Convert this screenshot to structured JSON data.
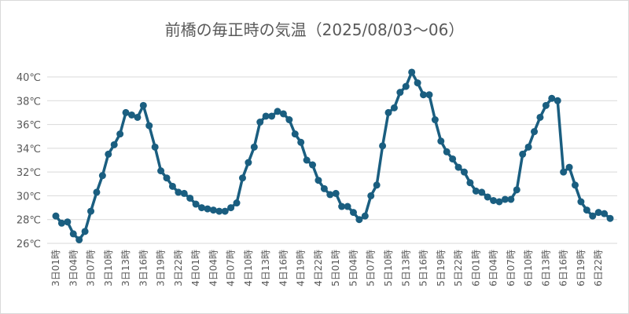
{
  "chart_data": {
    "type": "line",
    "title": "前橋の毎正時の気温（2025/08/03～06）",
    "xlabel": "",
    "ylabel": "",
    "ylim": [
      26,
      40
    ],
    "yticks": [
      "26℃",
      "28℃",
      "30℃",
      "32℃",
      "34℃",
      "36℃",
      "38℃",
      "40℃"
    ],
    "grid": true,
    "legend": "none",
    "color": "#1a5e80",
    "x_tick_labels": [
      "3日01時",
      "3日04時",
      "3日07時",
      "3日10時",
      "3日13時",
      "3日16時",
      "3日19時",
      "3日22時",
      "4日01時",
      "4日04時",
      "4日07時",
      "4日10時",
      "4日13時",
      "4日16時",
      "4日19時",
      "4日22時",
      "5日01時",
      "5日04時",
      "5日07時",
      "5日10時",
      "5日13時",
      "5日16時",
      "5日19時",
      "5日22時",
      "6日01時",
      "6日04時",
      "6日07時",
      "6日10時",
      "6日13時",
      "6日16時",
      "6日19時",
      "6日22時"
    ],
    "values": [
      28.3,
      27.7,
      27.8,
      26.8,
      26.3,
      27.0,
      28.7,
      30.3,
      31.7,
      33.5,
      34.3,
      35.2,
      37.0,
      36.8,
      36.6,
      37.6,
      35.9,
      34.1,
      32.1,
      31.5,
      30.8,
      30.3,
      30.2,
      29.8,
      29.3,
      29.0,
      28.9,
      28.8,
      28.7,
      28.7,
      29.0,
      29.4,
      31.5,
      32.8,
      34.1,
      36.2,
      36.7,
      36.7,
      37.1,
      36.9,
      36.4,
      35.2,
      34.5,
      33.0,
      32.6,
      31.3,
      30.6,
      30.1,
      30.2,
      29.1,
      29.1,
      28.6,
      28.0,
      28.3,
      30.0,
      30.9,
      34.2,
      37.0,
      37.4,
      38.7,
      39.2,
      40.4,
      39.5,
      38.5,
      38.5,
      36.4,
      34.6,
      33.7,
      33.1,
      32.4,
      32.0,
      31.1,
      30.4,
      30.3,
      29.9,
      29.6,
      29.5,
      29.7,
      29.7,
      30.5,
      33.5,
      34.1,
      35.4,
      36.6,
      37.6,
      38.2,
      38.0,
      32.0,
      32.4,
      30.9,
      29.5,
      28.8,
      28.3,
      28.6,
      28.5,
      28.1
    ]
  }
}
